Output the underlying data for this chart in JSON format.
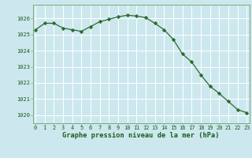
{
  "x": [
    0,
    1,
    2,
    3,
    4,
    5,
    6,
    7,
    8,
    9,
    10,
    11,
    12,
    13,
    14,
    15,
    16,
    17,
    18,
    19,
    20,
    21,
    22,
    23
  ],
  "y": [
    1025.3,
    1025.7,
    1025.7,
    1025.4,
    1025.3,
    1025.2,
    1025.5,
    1025.8,
    1025.95,
    1026.1,
    1026.2,
    1026.15,
    1026.05,
    1025.7,
    1025.3,
    1024.7,
    1023.8,
    1023.3,
    1022.5,
    1021.8,
    1021.35,
    1020.85,
    1020.35,
    1020.15
  ],
  "line_color": "#2d6a2d",
  "marker": "D",
  "marker_size": 2.2,
  "linewidth": 0.9,
  "bg_color": "#cce8ee",
  "grid_color": "#ffffff",
  "label_color": "#1a5c1a",
  "xlabel": "Graphe pression niveau de la mer (hPa)",
  "ylim": [
    1019.5,
    1026.85
  ],
  "yticks": [
    1020,
    1021,
    1022,
    1023,
    1024,
    1025,
    1026
  ],
  "xticks": [
    0,
    1,
    2,
    3,
    4,
    5,
    6,
    7,
    8,
    9,
    10,
    11,
    12,
    13,
    14,
    15,
    16,
    17,
    18,
    19,
    20,
    21,
    22,
    23
  ],
  "spine_color": "#7aaa7a",
  "tick_color": "#1a5c1a",
  "tick_fontsize": 5.0,
  "xlabel_fontsize": 6.2
}
